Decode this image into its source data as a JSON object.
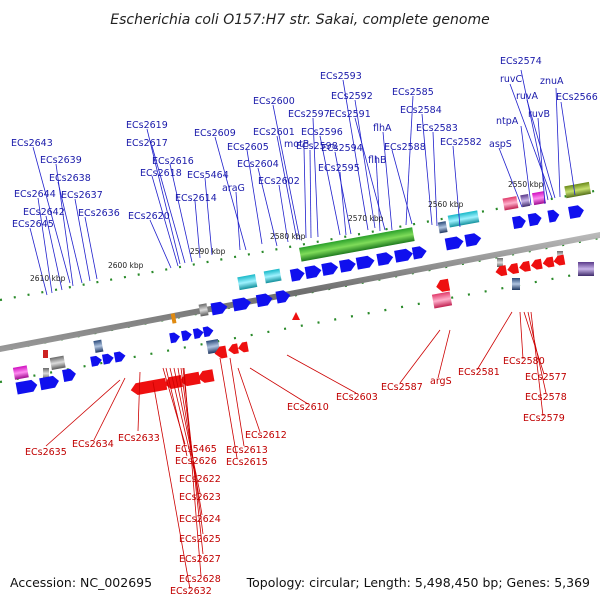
{
  "title": "Escherichia coli O157:H7 str. Sakai, complete genome",
  "accession": "Accession: NC_002695",
  "summary": "Topology: circular; Length: 5,498,450 bp; Genes: 5,369",
  "ticks": [
    "2550 kbp",
    "2560 kbp",
    "2570 kbp",
    "2580 kbp",
    "2590 kbp",
    "2600 kbp",
    "2610 kbp"
  ],
  "forward_labels": [
    "ECs2574",
    "ruvC",
    "znuA",
    "ruvA",
    "ECs2566",
    "ntpA",
    "ruvB",
    "aspS",
    "ECs2593",
    "ECs2585",
    "ECs2592",
    "ECs2600",
    "ECs2584",
    "ECs2597",
    "ECs2591",
    "flhA",
    "ECs2583",
    "ECs2601",
    "ECs2596",
    "ECs2582",
    "motB",
    "ECs2598",
    "ECs2594",
    "flhB",
    "ECs2588",
    "ECs2595",
    "ECs2604",
    "ECs2602",
    "ECs2605",
    "ECs2609",
    "araG",
    "ECs2619",
    "ECs2617",
    "ECs2616",
    "ECs2618",
    "ECs5464",
    "ECs2614",
    "ECs2620",
    "ECs2643",
    "ECs2639",
    "ECs2638",
    "ECs2644",
    "ECs2637",
    "ECs2642",
    "ECs2636",
    "ECs2645"
  ],
  "reverse_labels": [
    "ECs2635",
    "ECs2634",
    "ECs2633",
    "ECs5465",
    "ECs2626",
    "ECs2622",
    "ECs2623",
    "ECs2624",
    "ECs2625",
    "ECs2627",
    "ECs2628",
    "ECs2632",
    "ECs2613",
    "ECs2615",
    "ECs2612",
    "ECs2610",
    "ECs2603",
    "ECs2587",
    "argS",
    "ECs2581",
    "ECs2580",
    "ECs2577",
    "ECs2578",
    "ECs2579"
  ],
  "colors": {
    "forward_label": "#1a1aaa",
    "reverse_label": "#c00000",
    "forward_cds": "#1010ee",
    "reverse_cds": "#ee1010",
    "backbone": "#7f7f7f",
    "tick_mark": "#2a8a2a"
  }
}
